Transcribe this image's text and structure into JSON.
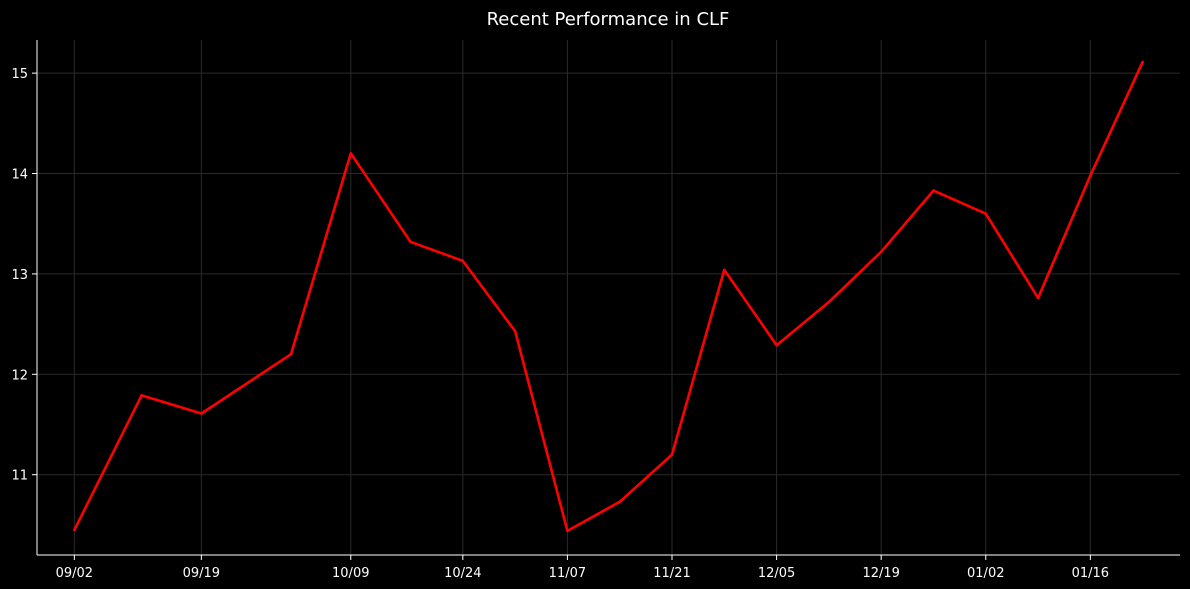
{
  "chart_data": {
    "type": "line",
    "title": "Recent Performance in CLF",
    "xlabel": "",
    "ylabel": "",
    "x": [
      "2024-09-02",
      "2024-09-11",
      "2024-09-19",
      "2024-10-01",
      "2024-10-09",
      "2024-10-17",
      "2024-10-24",
      "2024-10-31",
      "2024-11-07",
      "2024-11-14",
      "2024-11-21",
      "2024-11-28",
      "2024-12-05",
      "2024-12-12",
      "2024-12-19",
      "2024-12-26",
      "2025-01-02",
      "2025-01-09",
      "2025-01-16",
      "2025-01-23"
    ],
    "series": [
      {
        "values": [
          10.45,
          11.79,
          11.61,
          12.2,
          14.2,
          13.32,
          13.13,
          12.43,
          10.44,
          10.73,
          11.2,
          13.04,
          12.29,
          12.72,
          13.22,
          13.83,
          13.6,
          12.76,
          13.98,
          15.11
        ]
      }
    ],
    "xticks": [
      "09/02",
      "09/19",
      "10/09",
      "10/24",
      "11/07",
      "11/21",
      "12/05",
      "12/19",
      "01/02",
      "01/16"
    ],
    "yticks": [
      11,
      12,
      13,
      14,
      15
    ],
    "ylim": [
      10.2,
      15.33
    ],
    "xlim": [
      "2024-08-28",
      "2025-01-28"
    ],
    "grid": true,
    "colors": {
      "background": "#000000",
      "line": "#ff0000",
      "grid": "#2a2a2a",
      "text": "#ffffff",
      "axis": "#ffffff"
    }
  }
}
